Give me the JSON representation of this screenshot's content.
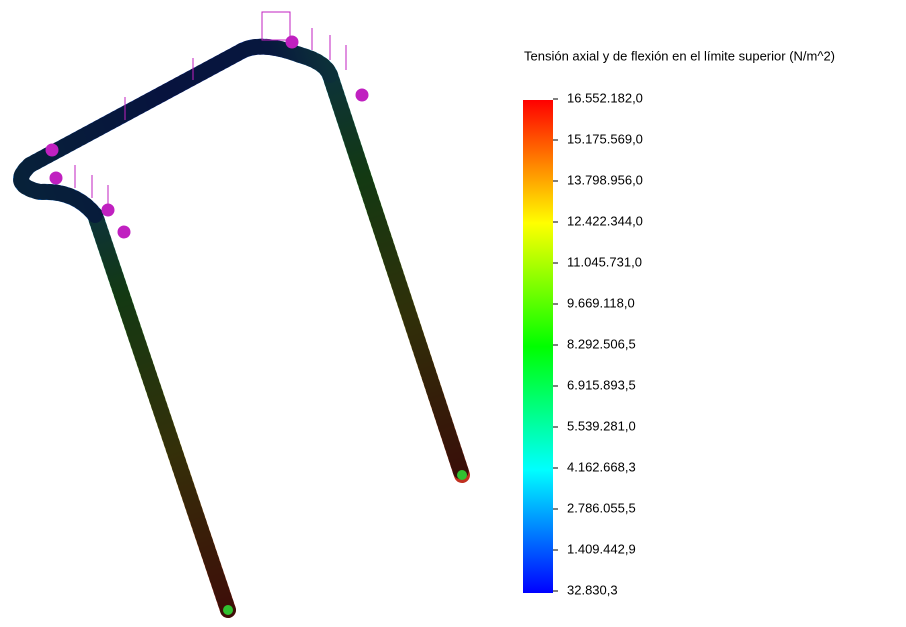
{
  "legend": {
    "title": "Tensión axial y de flexión en el límite superior (N/m^2)",
    "labels": [
      "16.552.182,0",
      "15.175.569,0",
      "13.798.956,0",
      "12.422.344,0",
      "11.045.731,0",
      "9.669.118,0",
      "8.292.506,5",
      "6.915.893,5",
      "5.539.281,0",
      "4.162.668,3",
      "2.786.055,5",
      "1.409.442,9",
      "32.830,3"
    ]
  }
}
